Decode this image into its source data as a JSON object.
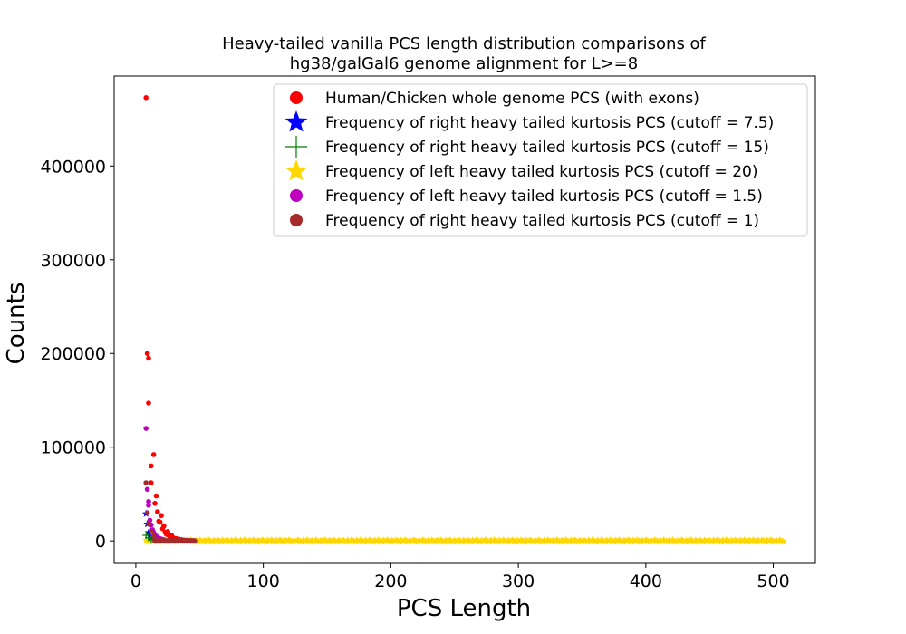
{
  "chart_data": {
    "type": "scatter",
    "title_lines": [
      "Heavy-tailed vanilla PCS length distribution comparisons of",
      "hg38/galGal6 genome alignment for L>=8"
    ],
    "xlabel": "PCS Length",
    "ylabel": "Counts",
    "xlim": [
      -17,
      533
    ],
    "ylim": [
      -24000,
      496000
    ],
    "xticks": [
      0,
      100,
      200,
      300,
      400,
      500
    ],
    "yticks": [
      0,
      100000,
      200000,
      300000,
      400000
    ],
    "xtick_labels": [
      "0",
      "100",
      "200",
      "300",
      "400",
      "500"
    ],
    "ytick_labels": [
      "0",
      "100000",
      "200000",
      "300000",
      "400000"
    ],
    "legend_position": "upper-right",
    "series": [
      {
        "name": "Human/Chicken whole genome PCS (with exons)",
        "marker": "circle",
        "color": "#ff0000",
        "points": [
          [
            8,
            473000
          ],
          [
            9,
            200000
          ],
          [
            10,
            195000
          ],
          [
            10,
            147000
          ],
          [
            12,
            80000
          ],
          [
            12,
            62000
          ],
          [
            14,
            92000
          ],
          [
            15,
            40000
          ],
          [
            16,
            48000
          ],
          [
            17,
            31000
          ],
          [
            18,
            21000
          ],
          [
            19,
            20000
          ],
          [
            20,
            27000
          ],
          [
            21,
            13000
          ],
          [
            22,
            16000
          ],
          [
            23,
            9000
          ],
          [
            24,
            7000
          ],
          [
            25,
            10000
          ],
          [
            26,
            5500
          ],
          [
            27,
            4000
          ],
          [
            28,
            6000
          ],
          [
            30,
            3000
          ],
          [
            32,
            2500
          ],
          [
            34,
            1800
          ],
          [
            36,
            1200
          ],
          [
            38,
            900
          ],
          [
            40,
            600
          ],
          [
            42,
            400
          ]
        ]
      },
      {
        "name": "Frequency of right heavy tailed kurtosis PCS (cutoff = 7.5)",
        "marker": "star",
        "color": "#0000ff",
        "points": [
          [
            8,
            29000
          ],
          [
            9,
            18000
          ],
          [
            10,
            9000
          ],
          [
            11,
            5000
          ],
          [
            12,
            3000
          ]
        ]
      },
      {
        "name": "Frequency of right heavy tailed kurtosis PCS (cutoff = 15)",
        "marker": "plus",
        "color": "#008000",
        "points": [
          [
            8,
            6000
          ],
          [
            10,
            3500
          ],
          [
            12,
            2000
          ],
          [
            14,
            1500
          ],
          [
            16,
            1000
          ]
        ]
      },
      {
        "name": "Frequency of left heavy tailed kurtosis PCS (cutoff = 20)",
        "marker": "star",
        "color": "#ffd700",
        "band": {
          "x_start": 8,
          "x_end": 508,
          "y": 0
        }
      },
      {
        "name": "Frequency of left heavy tailed kurtosis PCS (cutoff = 1.5)",
        "marker": "circle",
        "color": "#bf00bf",
        "points": [
          [
            8,
            120000
          ],
          [
            9,
            55000
          ],
          [
            10,
            42000
          ],
          [
            10,
            38000
          ],
          [
            11,
            22000
          ],
          [
            12,
            17000
          ],
          [
            13,
            12000
          ],
          [
            14,
            9000
          ],
          [
            15,
            6500
          ],
          [
            16,
            5000
          ],
          [
            18,
            3000
          ],
          [
            20,
            2000
          ],
          [
            22,
            1200
          ]
        ]
      },
      {
        "name": "Frequency of right heavy tailed kurtosis PCS (cutoff = 1)",
        "marker": "circle",
        "color": "#a52a2a",
        "points": [
          [
            8,
            62000
          ],
          [
            9,
            30000
          ],
          [
            10,
            18000
          ],
          [
            12,
            10000
          ],
          [
            14,
            5000
          ]
        ],
        "tail": {
          "x_start": 15,
          "x_end": 46,
          "y": 0
        }
      }
    ]
  }
}
